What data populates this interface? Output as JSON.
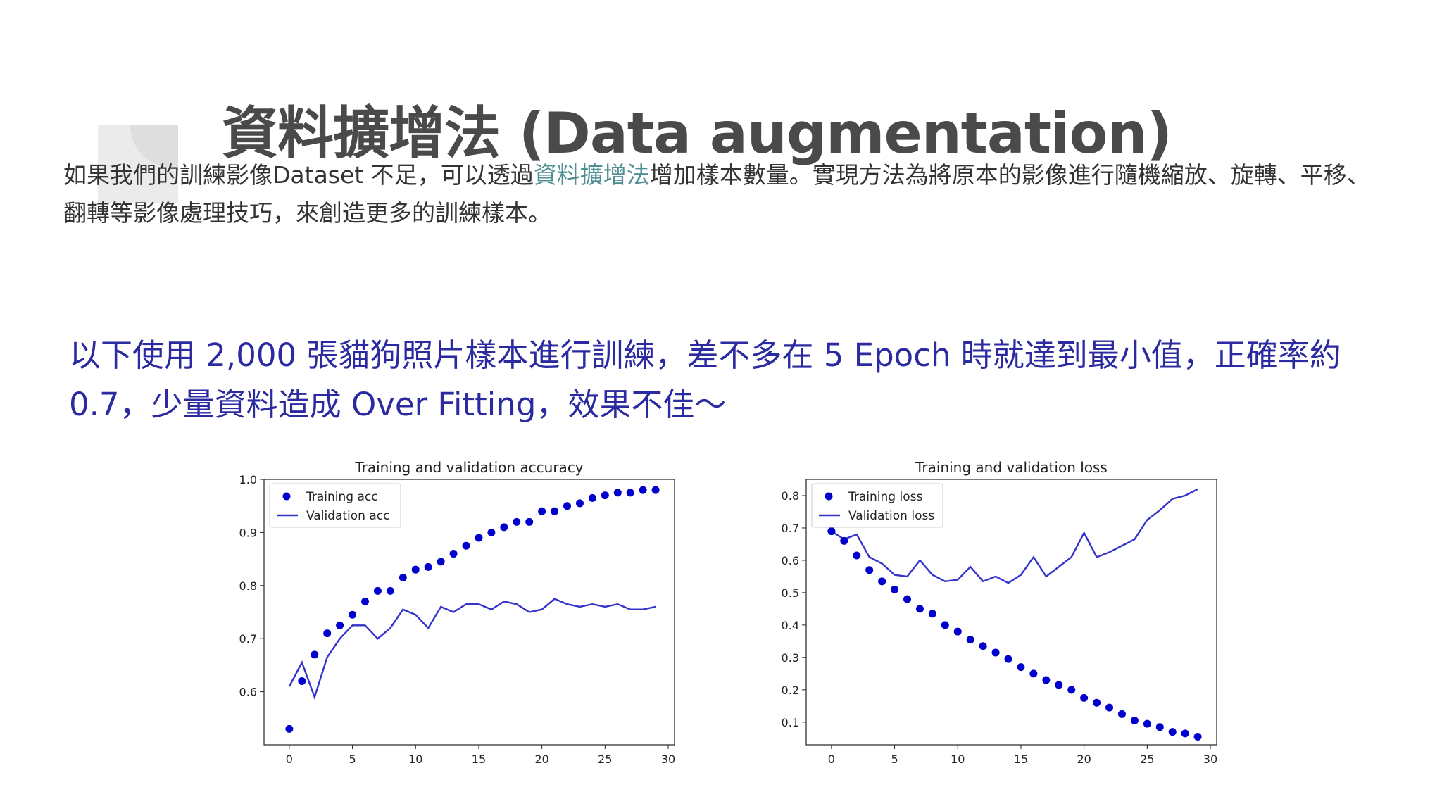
{
  "slide": {
    "title": "資料擴增法 (Data augmentation)",
    "intro_before": "如果我們的訓練影像Dataset 不足，可以透過",
    "intro_highlight": "資料擴增法",
    "intro_after": "增加樣本數量。實現方法為將原本的影像進行隨機縮放、旋轉、平移、翻轉等影像處理技巧，來創造更多的訓練樣本。",
    "note": "以下使用 2,000 張貓狗照片樣本進行訓練，差不多在 5 Epoch 時就達到最小值，正確率約 0.7，少量資料造成 Over Fitting，效果不佳～"
  },
  "colors": {
    "dots": "#0000cc",
    "line": "#3333cc",
    "note": "#2b2aa0",
    "highlight": "#4f8f93"
  },
  "chart_data": [
    {
      "type": "line",
      "title": "Training and validation accuracy",
      "xlabel": "",
      "ylabel": "",
      "xlim": [
        -2,
        30.5
      ],
      "ylim": [
        0.5,
        1.0
      ],
      "xticks": [
        0,
        5,
        10,
        15,
        20,
        25,
        30
      ],
      "yticks": [
        0.6,
        0.7,
        0.8,
        0.9,
        1.0
      ],
      "legend": "top-left",
      "grid": false,
      "x": [
        0,
        1,
        2,
        3,
        4,
        5,
        6,
        7,
        8,
        9,
        10,
        11,
        12,
        13,
        14,
        15,
        16,
        17,
        18,
        19,
        20,
        21,
        22,
        23,
        24,
        25,
        26,
        27,
        28,
        29
      ],
      "series": [
        {
          "name": "Training acc",
          "style": "dots",
          "values": [
            0.53,
            0.62,
            0.67,
            0.71,
            0.725,
            0.745,
            0.77,
            0.79,
            0.79,
            0.815,
            0.83,
            0.835,
            0.845,
            0.86,
            0.875,
            0.89,
            0.9,
            0.91,
            0.92,
            0.92,
            0.94,
            0.94,
            0.95,
            0.955,
            0.965,
            0.97,
            0.975,
            0.975,
            0.98,
            0.98
          ]
        },
        {
          "name": "Validation acc",
          "style": "line",
          "values": [
            0.61,
            0.655,
            0.59,
            0.665,
            0.7,
            0.725,
            0.725,
            0.7,
            0.72,
            0.755,
            0.745,
            0.72,
            0.76,
            0.75,
            0.765,
            0.765,
            0.755,
            0.77,
            0.765,
            0.75,
            0.755,
            0.775,
            0.765,
            0.76,
            0.765,
            0.76,
            0.765,
            0.755,
            0.755,
            0.76
          ]
        }
      ]
    },
    {
      "type": "line",
      "title": "Training and validation loss",
      "xlabel": "",
      "ylabel": "",
      "xlim": [
        -2,
        30.5
      ],
      "ylim": [
        0.03,
        0.85
      ],
      "xticks": [
        0,
        5,
        10,
        15,
        20,
        25,
        30
      ],
      "yticks": [
        0.1,
        0.2,
        0.3,
        0.4,
        0.5,
        0.6,
        0.7,
        0.8
      ],
      "legend": "top-left",
      "grid": false,
      "x": [
        0,
        1,
        2,
        3,
        4,
        5,
        6,
        7,
        8,
        9,
        10,
        11,
        12,
        13,
        14,
        15,
        16,
        17,
        18,
        19,
        20,
        21,
        22,
        23,
        24,
        25,
        26,
        27,
        28,
        29
      ],
      "series": [
        {
          "name": "Training loss",
          "style": "dots",
          "values": [
            0.69,
            0.66,
            0.615,
            0.57,
            0.535,
            0.51,
            0.48,
            0.45,
            0.435,
            0.4,
            0.38,
            0.355,
            0.335,
            0.315,
            0.295,
            0.27,
            0.25,
            0.23,
            0.215,
            0.2,
            0.175,
            0.16,
            0.145,
            0.125,
            0.105,
            0.095,
            0.085,
            0.07,
            0.065,
            0.055
          ]
        },
        {
          "name": "Validation loss",
          "style": "line",
          "values": [
            0.69,
            0.665,
            0.68,
            0.61,
            0.59,
            0.555,
            0.55,
            0.6,
            0.555,
            0.535,
            0.54,
            0.58,
            0.535,
            0.55,
            0.53,
            0.555,
            0.61,
            0.55,
            0.58,
            0.61,
            0.685,
            0.61,
            0.625,
            0.645,
            0.665,
            0.725,
            0.755,
            0.79,
            0.8,
            0.82
          ]
        }
      ]
    }
  ]
}
